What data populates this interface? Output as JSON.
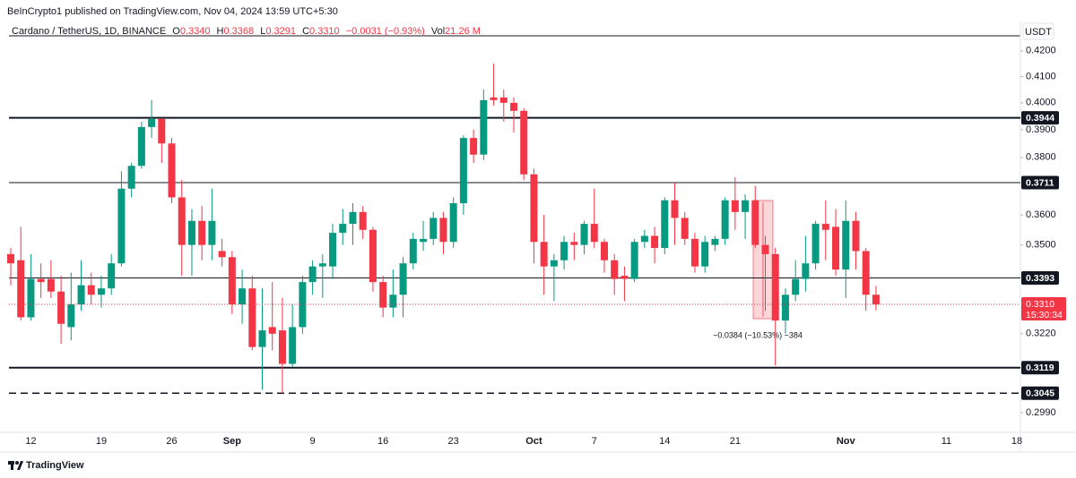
{
  "header": {
    "publisher": "BeInCrypto1 published on TradingView.com, Nov 04, 2024 13:59 UTC+5:30",
    "symbol": "Cardano / TetherUS, 1D, BINANCE",
    "ohlc": [
      {
        "key": "O",
        "value": "0.3340"
      },
      {
        "key": "H",
        "value": "0.3368"
      },
      {
        "key": "L",
        "value": "0.3291"
      },
      {
        "key": "C",
        "value": "0.3310"
      }
    ],
    "change": "−0.0031 (−0.93%)",
    "volume_key": "Vol",
    "volume": "21.26 M"
  },
  "chart_data": {
    "type": "candlestick",
    "currency": "USDT",
    "log_scale": true,
    "up_color": "#089981",
    "down_color": "#f23645",
    "ylim": [
      0.2935,
      0.4303
    ],
    "yticks": [
      {
        "value": 0.42,
        "label": "0.4200"
      },
      {
        "value": 0.41,
        "label": "0.4100"
      },
      {
        "value": 0.4,
        "label": "0.4000"
      },
      {
        "value": 0.39,
        "label": "0.3900"
      },
      {
        "value": 0.38,
        "label": "0.3800"
      },
      {
        "value": 0.36,
        "label": "0.3600"
      },
      {
        "value": 0.35,
        "label": "0.3500"
      },
      {
        "value": 0.322,
        "label": "0.3220"
      },
      {
        "value": 0.299,
        "label": "0.2990"
      }
    ],
    "categories": [
      null,
      null,
      "12",
      null,
      null,
      null,
      null,
      null,
      null,
      "19",
      null,
      null,
      null,
      null,
      null,
      null,
      "26",
      null,
      null,
      null,
      null,
      null,
      "Sep",
      null,
      null,
      null,
      null,
      null,
      null,
      null,
      "9",
      null,
      null,
      null,
      null,
      null,
      null,
      "16",
      null,
      null,
      null,
      null,
      null,
      null,
      "23",
      null,
      null,
      null,
      null,
      null,
      null,
      null,
      "Oct",
      null,
      null,
      null,
      null,
      null,
      "7",
      null,
      null,
      null,
      null,
      null,
      null,
      "14",
      null,
      null,
      null,
      null,
      null,
      null,
      "21",
      null,
      null,
      null,
      null,
      null,
      null,
      null,
      null,
      null,
      null,
      "Nov",
      null,
      null,
      null,
      null,
      null,
      null,
      null,
      null,
      null,
      "11",
      null,
      null,
      null,
      null,
      null,
      null,
      "18"
    ],
    "open": [
      0.347,
      0.345,
      0.327,
      0.339,
      0.339,
      0.335,
      0.324,
      0.331,
      0.337,
      0.334,
      0.336,
      0.344,
      0.369,
      0.377,
      0.391,
      0.394,
      0.385,
      0.366,
      0.35,
      0.358,
      0.35,
      0.348,
      0.346,
      0.331,
      0.336,
      0.318,
      0.324,
      0.323,
      0.313,
      0.324,
      0.338,
      0.343,
      0.343,
      0.354,
      0.357,
      0.361,
      0.355,
      0.338,
      0.33,
      0.334,
      0.344,
      0.351,
      0.352,
      0.359,
      0.351,
      0.364,
      0.387,
      0.381,
      0.402,
      0.402,
      0.4,
      0.397,
      0.374,
      0.351,
      0.343,
      0.345,
      0.351,
      0.35,
      0.357,
      0.351,
      0.345,
      0.34,
      0.339,
      0.351,
      0.353,
      0.349,
      0.365,
      0.359,
      0.352,
      0.343,
      0.35,
      0.352,
      0.365,
      0.361,
      0.365,
      0.35,
      0.347,
      0.326,
      0.334,
      0.339,
      0.344,
      0.357,
      0.356,
      0.342,
      0.358,
      0.348,
      0.334,
      null,
      null,
      null,
      null,
      null,
      null,
      null,
      null,
      null,
      null,
      null,
      null,
      null,
      null
    ],
    "high": [
      0.349,
      0.356,
      0.347,
      0.344,
      0.345,
      0.34,
      0.341,
      0.345,
      0.341,
      0.34,
      0.347,
      0.375,
      0.378,
      0.393,
      0.401,
      0.394,
      0.387,
      0.372,
      0.362,
      0.363,
      0.369,
      0.352,
      0.348,
      0.342,
      0.34,
      0.336,
      0.338,
      0.333,
      0.331,
      0.34,
      0.345,
      0.347,
      0.357,
      0.362,
      0.364,
      0.363,
      0.356,
      0.34,
      0.342,
      0.346,
      0.354,
      0.358,
      0.361,
      0.361,
      0.366,
      0.388,
      0.39,
      0.405,
      0.415,
      0.405,
      0.402,
      0.398,
      0.376,
      0.36,
      0.347,
      0.353,
      0.354,
      0.358,
      0.369,
      0.352,
      0.347,
      0.343,
      0.352,
      0.355,
      0.356,
      0.366,
      0.371,
      0.361,
      0.354,
      0.353,
      0.353,
      0.366,
      0.373,
      0.367,
      0.37,
      0.353,
      0.349,
      0.336,
      0.345,
      0.353,
      0.358,
      0.365,
      0.362,
      0.365,
      0.361,
      0.349,
      0.3368,
      null,
      null,
      null,
      null,
      null,
      null,
      null,
      null,
      null,
      null,
      null,
      null,
      null,
      null
    ],
    "low": [
      0.337,
      0.326,
      0.326,
      0.333,
      0.333,
      0.319,
      0.32,
      0.329,
      0.331,
      0.33,
      0.334,
      0.343,
      0.366,
      0.376,
      0.387,
      0.378,
      0.364,
      0.34,
      0.34,
      0.345,
      0.345,
      0.343,
      0.328,
      0.325,
      0.317,
      0.3055,
      0.317,
      0.3045,
      0.312,
      0.322,
      0.334,
      0.333,
      0.339,
      0.35,
      0.35,
      0.352,
      0.335,
      0.327,
      0.327,
      0.327,
      0.342,
      0.348,
      0.35,
      0.347,
      0.349,
      0.36,
      0.378,
      0.379,
      0.399,
      0.393,
      0.389,
      0.372,
      0.344,
      0.334,
      0.332,
      0.342,
      0.345,
      0.347,
      0.349,
      0.341,
      0.334,
      0.332,
      0.338,
      0.349,
      0.344,
      0.347,
      0.35,
      0.35,
      0.341,
      0.341,
      0.348,
      0.35,
      0.355,
      0.352,
      0.349,
      0.329,
      0.3125,
      0.322,
      0.332,
      0.335,
      0.342,
      0.345,
      0.34,
      0.333,
      0.342,
      0.329,
      0.3291,
      null,
      null,
      null,
      null,
      null,
      null,
      null,
      null,
      null,
      null,
      null,
      null,
      null,
      null
    ],
    "close": [
      0.344,
      0.327,
      0.339,
      0.338,
      0.335,
      0.325,
      0.331,
      0.337,
      0.334,
      0.336,
      0.344,
      0.369,
      0.377,
      0.391,
      0.394,
      0.385,
      0.366,
      0.35,
      0.358,
      0.35,
      0.358,
      0.346,
      0.331,
      0.336,
      0.318,
      0.323,
      0.322,
      0.313,
      0.324,
      0.338,
      0.343,
      0.344,
      0.354,
      0.357,
      0.361,
      0.355,
      0.338,
      0.33,
      0.334,
      0.344,
      0.352,
      0.352,
      0.359,
      0.351,
      0.364,
      0.387,
      0.381,
      0.401,
      0.401,
      0.4,
      0.397,
      0.374,
      0.351,
      0.343,
      0.345,
      0.351,
      0.35,
      0.357,
      0.351,
      0.345,
      0.339,
      0.339,
      0.351,
      0.353,
      0.349,
      0.365,
      0.359,
      0.352,
      0.343,
      0.351,
      0.352,
      0.365,
      0.361,
      0.365,
      0.35,
      0.347,
      0.326,
      0.334,
      0.339,
      0.344,
      0.357,
      0.355,
      0.342,
      0.358,
      0.348,
      0.334,
      0.331,
      null,
      null,
      null,
      null,
      null,
      null,
      null,
      null,
      null,
      null,
      null,
      null,
      null,
      null
    ],
    "levels": [
      {
        "value": 0.3944,
        "label": "0.3944",
        "line_width": 2,
        "style": "solid"
      },
      {
        "value": 0.3711,
        "label": "0.3711",
        "line_width": 1,
        "style": "solid"
      },
      {
        "value": 0.3393,
        "label": "0.3393",
        "line_width": 1,
        "style": "solid"
      },
      {
        "value": 0.3119,
        "label": "0.3119",
        "line_width": 2,
        "style": "solid"
      },
      {
        "value": 0.3045,
        "label": "0.3045",
        "line_width": 1.5,
        "style": "dashed"
      }
    ],
    "last_price": {
      "value": 0.331,
      "label": "0.3310",
      "countdown": "15:30:34"
    },
    "measure_label": "−0.0384 (−10.53%) −384",
    "brand": "TradingView"
  }
}
